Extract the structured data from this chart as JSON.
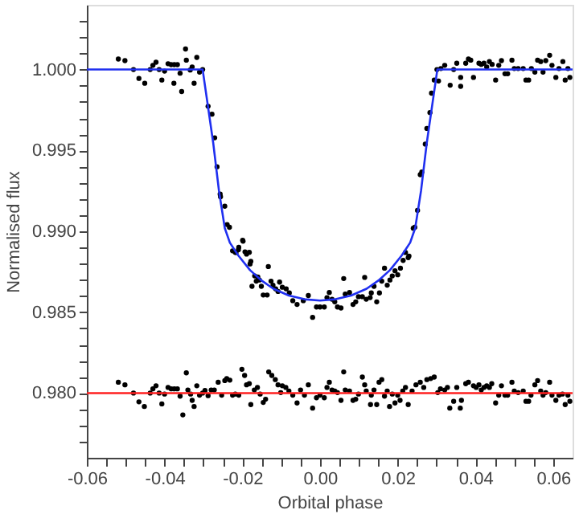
{
  "chart_data": {
    "type": "scatter",
    "xlabel": "Orbital phase",
    "ylabel": "Normalised flux",
    "xlim": [
      -0.06,
      0.065
    ],
    "ylim": [
      0.976,
      1.004
    ],
    "grid": false,
    "marker": "circle",
    "xticks": [
      {
        "value": -0.06,
        "label": "-0.06"
      },
      {
        "value": -0.055,
        "label": null
      },
      {
        "value": -0.05,
        "label": null
      },
      {
        "value": -0.045,
        "label": null
      },
      {
        "value": -0.04,
        "label": "-0.04"
      },
      {
        "value": -0.035,
        "label": null
      },
      {
        "value": -0.03,
        "label": null
      },
      {
        "value": -0.025,
        "label": null
      },
      {
        "value": -0.02,
        "label": "-0.02"
      },
      {
        "value": -0.015,
        "label": null
      },
      {
        "value": -0.01,
        "label": null
      },
      {
        "value": -0.005,
        "label": null
      },
      {
        "value": 0,
        "label": "0.00"
      },
      {
        "value": 0.005,
        "label": null
      },
      {
        "value": 0.01,
        "label": null
      },
      {
        "value": 0.015,
        "label": null
      },
      {
        "value": 0.02,
        "label": "0.02"
      },
      {
        "value": 0.025,
        "label": null
      },
      {
        "value": 0.03,
        "label": null
      },
      {
        "value": 0.035,
        "label": null
      },
      {
        "value": 0.04,
        "label": "0.04"
      },
      {
        "value": 0.045,
        "label": null
      },
      {
        "value": 0.05,
        "label": null
      },
      {
        "value": 0.055,
        "label": null
      },
      {
        "value": 0.06,
        "label": "0.06"
      }
    ],
    "yticks": [
      {
        "value": 0.977,
        "label": null
      },
      {
        "value": 0.978,
        "label": null
      },
      {
        "value": 0.979,
        "label": null
      },
      {
        "value": 0.98,
        "label": "0.980"
      },
      {
        "value": 0.981,
        "label": null
      },
      {
        "value": 0.982,
        "label": null
      },
      {
        "value": 0.983,
        "label": null
      },
      {
        "value": 0.984,
        "label": null
      },
      {
        "value": 0.985,
        "label": "0.985"
      },
      {
        "value": 0.986,
        "label": null
      },
      {
        "value": 0.987,
        "label": null
      },
      {
        "value": 0.988,
        "label": null
      },
      {
        "value": 0.989,
        "label": null
      },
      {
        "value": 0.99,
        "label": "0.990"
      },
      {
        "value": 0.991,
        "label": null
      },
      {
        "value": 0.992,
        "label": null
      },
      {
        "value": 0.993,
        "label": null
      },
      {
        "value": 0.994,
        "label": null
      },
      {
        "value": 0.995,
        "label": "0.995"
      },
      {
        "value": 0.996,
        "label": null
      },
      {
        "value": 0.997,
        "label": null
      },
      {
        "value": 0.998,
        "label": null
      },
      {
        "value": 0.999,
        "label": null
      },
      {
        "value": 1.0,
        "label": "1.000"
      },
      {
        "value": 1.001,
        "label": null
      },
      {
        "value": 1.002,
        "label": null
      },
      {
        "value": 1.003,
        "label": null
      }
    ],
    "series": [
      {
        "color": "#000000",
        "x": [
          -0.0519,
          -0.0502,
          -0.048,
          -0.0466,
          -0.0451,
          -0.0437,
          -0.043,
          -0.0422,
          -0.0414,
          -0.0407,
          -0.04,
          -0.0391,
          -0.0383,
          -0.0375,
          -0.0367,
          -0.036,
          -0.0376,
          -0.0356,
          -0.0346,
          -0.0344,
          -0.0334,
          -0.0329,
          -0.0324,
          -0.0317,
          -0.031,
          -0.0302,
          -0.0288,
          -0.0278,
          -0.0271,
          -0.0265,
          -0.0257,
          -0.0256,
          -0.0245,
          -0.0239,
          -0.0233,
          -0.0225,
          -0.0218,
          -0.021,
          -0.0199,
          -0.0193,
          -0.0182,
          -0.0178,
          -0.0133,
          -0.0216,
          -0.0209,
          -0.0198,
          -0.0189,
          -0.018,
          -0.0168,
          -0.016,
          -0.0175,
          -0.0164,
          -0.0156,
          -0.0151,
          -0.0146,
          -0.0136,
          -0.0126,
          -0.0121,
          -0.0114,
          -0.0108,
          -0.0104,
          -0.0097,
          -0.0087,
          -0.0079,
          -0.007,
          -0.0059,
          -0.0043,
          -0.003,
          -0.0019,
          -0.0009,
          0.0,
          0.0011,
          0.0018,
          0.0024,
          0.0031,
          0.0038,
          0.0045,
          0.0054,
          0.0061,
          0.0065,
          0.0076,
          0.0085,
          0.0092,
          0.0099,
          0.0109,
          0.0115,
          0.0119,
          0.0129,
          0.0132,
          0.0139,
          0.0146,
          0.0153,
          0.0159,
          0.0166,
          0.0173,
          0.018,
          0.0186,
          0.0193,
          0.02,
          0.0207,
          0.0214,
          0.022,
          0.0227,
          0.0229,
          0.024,
          0.0244,
          0.0251,
          0.0258,
          0.0262,
          0.0271,
          0.0275,
          0.0283,
          0.0287,
          0.0294,
          0.0301,
          0.0305,
          0.0311,
          0.0321,
          0.0335,
          0.0344,
          0.0352,
          0.0362,
          0.0362,
          0.0375,
          0.0382,
          0.0388,
          0.0395,
          0.0409,
          0.0415,
          0.0422,
          0.0429,
          0.0436,
          0.0443,
          0.0452,
          0.046,
          0.0467,
          0.0476,
          0.0483,
          0.0494,
          0.05,
          0.051,
          0.0523,
          0.053,
          0.0537,
          0.0544,
          0.0553,
          0.056,
          0.0568,
          0.0574,
          0.0581,
          0.0591,
          0.0597,
          0.0607,
          0.0615,
          0.0625,
          0.0631,
          0.0638,
          0.0643
        ],
        "values": [
          1.00065,
          1.00055,
          1.0,
          0.99945,
          0.99915,
          1.0,
          1.00026,
          1.00045,
          1.0,
          0.99935,
          0.9999,
          1.00036,
          1.0003,
          1.0003,
          1.0003,
          0.99977,
          0.99915,
          0.99864,
          1.00127,
          1.00058,
          0.99997,
          1.00016,
          0.99915,
          1.00075,
          0.99984,
          1.0,
          0.99773,
          0.99724,
          0.99578,
          0.99399,
          0.9923,
          0.99214,
          0.99155,
          0.99042,
          0.99025,
          0.98879,
          0.9887,
          0.98886,
          0.98944,
          0.98873,
          0.9887,
          0.98814,
          0.98782,
          0.98869,
          0.98901,
          0.98939,
          0.98859,
          0.98798,
          0.98724,
          0.98718,
          0.9866,
          0.98692,
          0.98699,
          0.9866,
          0.98606,
          0.98606,
          0.98692,
          0.98667,
          0.98644,
          0.98628,
          0.98686,
          0.98654,
          0.98644,
          0.98619,
          0.98571,
          0.98548,
          0.98571,
          0.98603,
          0.98468,
          0.98532,
          0.98532,
          0.98532,
          0.9859,
          0.98622,
          0.9858,
          0.98564,
          0.98532,
          0.98526,
          0.98708,
          0.98612,
          0.98622,
          0.98548,
          0.98564,
          0.98596,
          0.98596,
          0.98715,
          0.9858,
          0.9859,
          0.98619,
          0.9866,
          0.98564,
          0.98619,
          0.98692,
          0.98772,
          0.98667,
          0.98699,
          0.98724,
          0.98756,
          0.98731,
          0.98772,
          0.9882,
          0.98869,
          0.98837,
          0.98847,
          0.99019,
          0.99025,
          0.99129,
          0.9935,
          0.99366,
          0.99539,
          0.99636,
          0.99734,
          0.99854,
          0.99935,
          1.0,
          0.99929,
          1.00006,
          1.00026,
          0.99903,
          1.0,
          1.00039,
          0.99951,
          0.99896,
          1.00039,
          1.00065,
          1.00058,
          0.99951,
          1.00039,
          1.00032,
          1.00039,
          1.00016,
          1.00049,
          1.00032,
          0.99935,
          1.00026,
          1.00055,
          0.99974,
          0.99974,
          1.00058,
          1.00006,
          1.00006,
          1.00006,
          0.99935,
          0.99935,
          1.00006,
          0.99984,
          1.00058,
          1.00049,
          0.99984,
          1.00055,
          1.00088,
          1.00026,
          0.99951,
          1.00006,
          1.00049,
          0.99935,
          1.00006,
          0.99951
        ]
      },
      {
        "color": "#000000",
        "x": [
          -0.0519,
          -0.0502,
          -0.048,
          -0.0466,
          -0.0452,
          -0.0437,
          -0.043,
          -0.0422,
          -0.0414,
          -0.0407,
          -0.04,
          -0.0391,
          -0.0383,
          -0.0375,
          -0.0367,
          -0.036,
          -0.0353,
          -0.0344,
          -0.034,
          -0.0333,
          -0.0329,
          -0.0324,
          -0.0317,
          -0.031,
          -0.0302,
          -0.0296,
          -0.0288,
          -0.028,
          -0.0272,
          -0.0262,
          -0.0253,
          -0.0245,
          -0.024,
          -0.0232,
          -0.0225,
          -0.0218,
          -0.0209,
          -0.0201,
          -0.0194,
          -0.0189,
          -0.0182,
          -0.0178,
          -0.0169,
          -0.0161,
          -0.0154,
          -0.0146,
          -0.014,
          -0.0132,
          -0.0124,
          -0.0115,
          -0.0108,
          -0.0101,
          -0.0097,
          -0.0088,
          -0.008,
          -0.007,
          -0.0059,
          -0.005,
          -0.004,
          -0.003,
          -0.0019,
          -0.0009,
          0.0,
          0.0011,
          0.0018,
          0.0024,
          0.0031,
          0.0038,
          0.0045,
          0.0054,
          0.0061,
          0.0065,
          0.0076,
          0.0085,
          0.0092,
          0.0099,
          0.0109,
          0.0115,
          0.0119,
          0.013,
          0.0132,
          0.0139,
          0.0146,
          0.0152,
          0.0159,
          0.0166,
          0.0173,
          0.0179,
          0.0186,
          0.0193,
          0.02,
          0.0206,
          0.0213,
          0.022,
          0.0227,
          0.0237,
          0.0247,
          0.0258,
          0.0267,
          0.0275,
          0.0285,
          0.0294,
          0.0303,
          0.031,
          0.0321,
          0.0328,
          0.0334,
          0.0344,
          0.0352,
          0.0361,
          0.0364,
          0.0375,
          0.0382,
          0.0395,
          0.0402,
          0.0409,
          0.0415,
          0.0422,
          0.0429,
          0.0436,
          0.0442,
          0.0452,
          0.046,
          0.0467,
          0.0476,
          0.0483,
          0.0494,
          0.05,
          0.051,
          0.0523,
          0.053,
          0.0537,
          0.0543,
          0.0553,
          0.056,
          0.0568,
          0.0574,
          0.0581,
          0.0591,
          0.0597,
          0.0607,
          0.0615,
          0.0624,
          0.0631,
          0.0638,
          0.0643
        ],
        "values": [
          0.98067,
          0.98051,
          0.98,
          0.97946,
          0.97917,
          0.98,
          0.98026,
          0.98045,
          0.98,
          0.97933,
          0.97994,
          0.98035,
          0.98026,
          0.98026,
          0.98026,
          0.97981,
          0.97865,
          0.98125,
          0.98019,
          0.97994,
          0.97955,
          0.97917,
          0.98045,
          0.97987,
          0.98,
          0.98016,
          0.97984,
          0.98019,
          0.98019,
          0.98067,
          0.97987,
          0.98077,
          0.9809,
          0.9808,
          0.97987,
          0.97994,
          0.97987,
          0.98147,
          0.98109,
          0.98051,
          0.98058,
          0.97929,
          0.98019,
          0.98035,
          0.97994,
          0.97942,
          0.97962,
          0.98131,
          0.98109,
          0.98083,
          0.98051,
          0.98003,
          0.98045,
          0.98035,
          0.98013,
          0.97987,
          0.97939,
          0.98019,
          0.97987,
          0.98051,
          0.97907,
          0.97971,
          0.97987,
          0.97971,
          0.98035,
          0.98067,
          0.98019,
          0.98013,
          0.98003,
          0.97955,
          0.98131,
          0.98019,
          0.98013,
          0.97955,
          0.97962,
          0.97994,
          0.98099,
          0.98051,
          0.98013,
          0.97929,
          0.97987,
          0.98019,
          0.97929,
          0.98067,
          0.98083,
          0.97981,
          0.98013,
          0.97917,
          0.97994,
          0.97939,
          0.97987,
          0.97955,
          0.98013,
          0.98035,
          0.97929,
          0.98013,
          0.98051,
          0.98067,
          0.98035,
          0.98083,
          0.9809,
          0.98099,
          0.98003,
          0.98026,
          0.98019,
          0.98035,
          0.97907,
          0.97949,
          0.98035,
          0.97907,
          0.97955,
          0.98058,
          0.98067,
          0.98045,
          0.98035,
          0.98051,
          0.98019,
          0.98035,
          0.98045,
          0.98035,
          0.98058,
          0.97939,
          0.97987,
          0.98045,
          0.97987,
          0.97987,
          0.98067,
          0.98013,
          0.98003,
          0.98013,
          0.97949,
          0.97949,
          0.97987,
          0.98051,
          0.98077,
          0.98013,
          0.97987,
          0.98003,
          0.98067,
          0.97987,
          0.97955,
          0.97987,
          0.97994,
          0.97929,
          0.97987,
          0.97949
        ]
      },
      {
        "type": "line",
        "marker": "none",
        "color": "#1f2ff0",
        "x": [
          -0.06,
          -0.0302,
          -0.029,
          -0.0275,
          -0.026,
          -0.0245,
          -0.0232,
          -0.021,
          -0.018,
          -0.015,
          -0.012,
          -0.008,
          -0.004,
          0.0,
          0.004,
          0.008,
          0.012,
          0.015,
          0.018,
          0.021,
          0.0232,
          0.0245,
          0.026,
          0.0275,
          0.029,
          0.0302,
          0.065
        ],
        "values": [
          1.0,
          1.0,
          0.998,
          0.9955,
          0.9925,
          0.9902,
          0.9893,
          0.9885,
          0.9876,
          0.98695,
          0.98645,
          0.98603,
          0.9858,
          0.98572,
          0.9858,
          0.98603,
          0.98645,
          0.98695,
          0.9876,
          0.9885,
          0.9893,
          0.9902,
          0.9925,
          0.9955,
          0.998,
          1.0,
          1.0
        ]
      },
      {
        "type": "line",
        "marker": "none",
        "color": "#ff2020",
        "x": [
          -0.06,
          0.065
        ],
        "values": [
          0.98,
          0.98
        ]
      }
    ]
  }
}
